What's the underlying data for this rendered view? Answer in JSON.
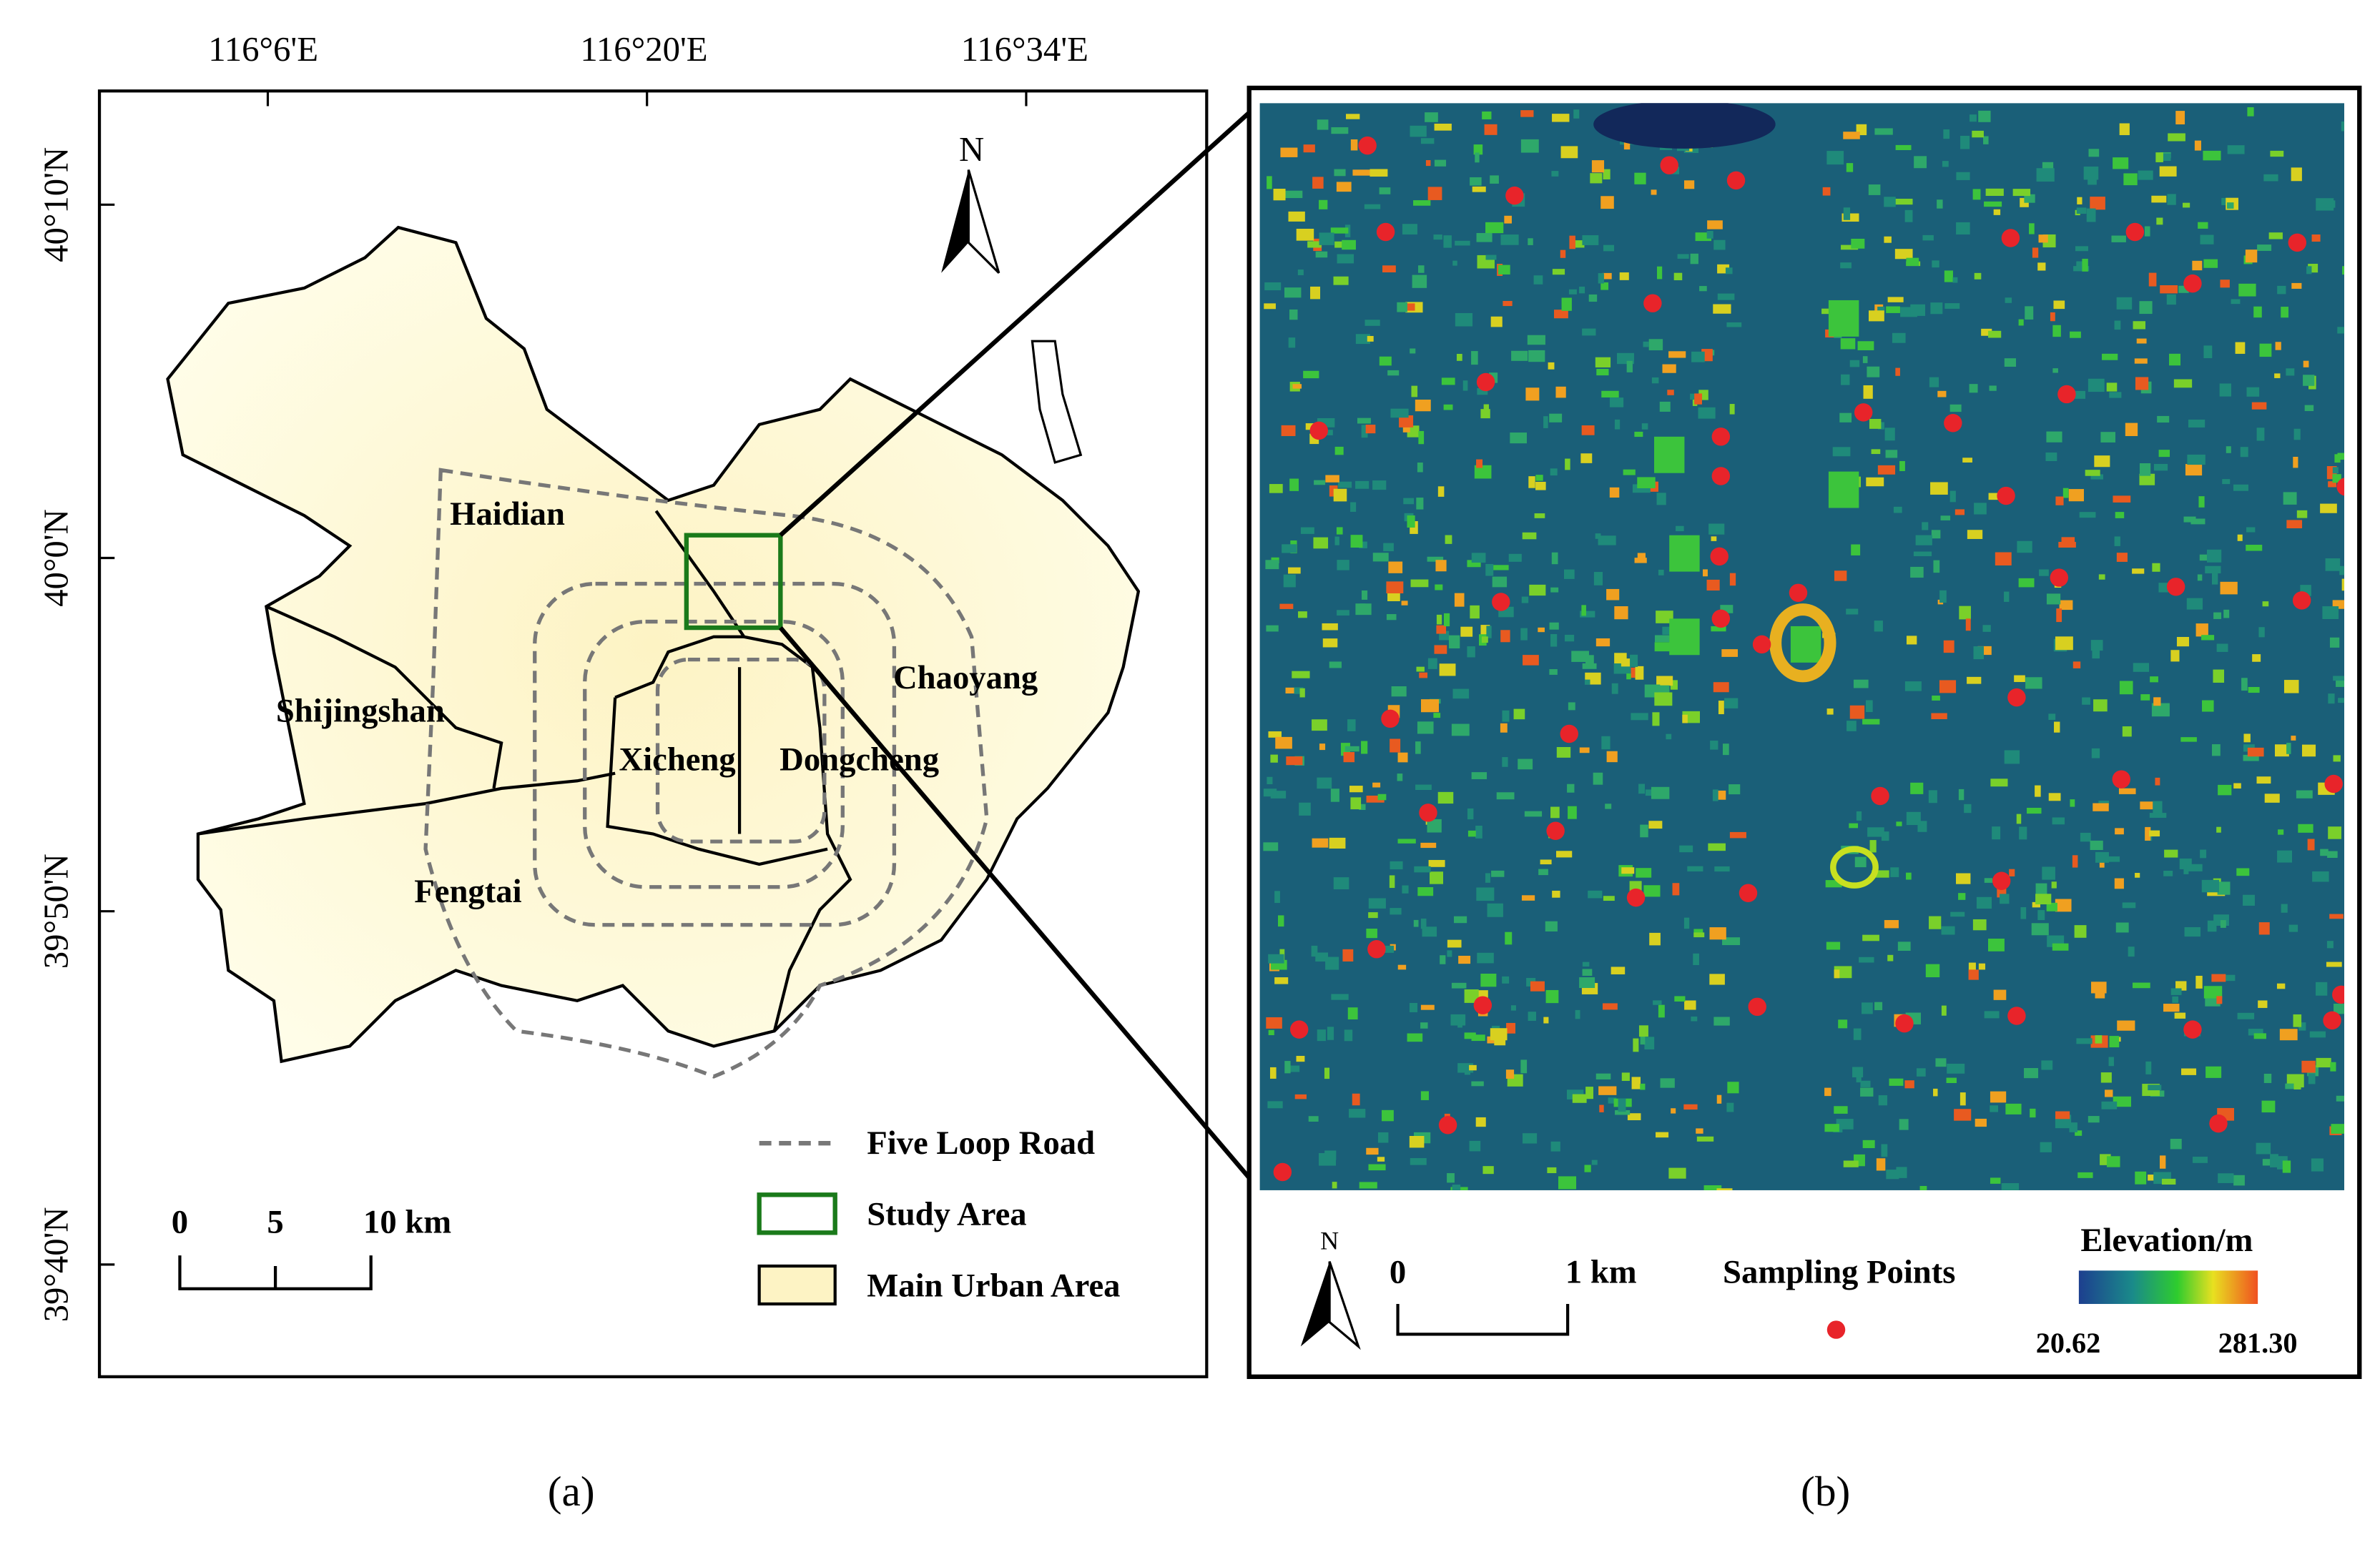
{
  "panel_a": {
    "x_labels": [
      "116°6'E",
      "116°20'E",
      "116°34'E"
    ],
    "y_labels": [
      "40°10'N",
      "40°0'N",
      "39°50'N",
      "39°40'N"
    ],
    "north": "N",
    "districts": [
      "Haidian",
      "Shijingshan",
      "Xicheng",
      "Dongcheng",
      "Chaoyang",
      "Fengtai"
    ],
    "scale_labels": [
      "0",
      "5",
      "10 km"
    ],
    "legend": [
      "Five Loop Road",
      "Study Area",
      "Main Urban Area"
    ],
    "caption": "(a)"
  },
  "panel_b": {
    "north": "N",
    "scale_labels": [
      "0",
      "1 km"
    ],
    "legend_points": "Sampling Points",
    "elevation_title": "Elevation/m",
    "elevation_min": "20.62",
    "elevation_max": "281.30",
    "caption": "(b)"
  }
}
